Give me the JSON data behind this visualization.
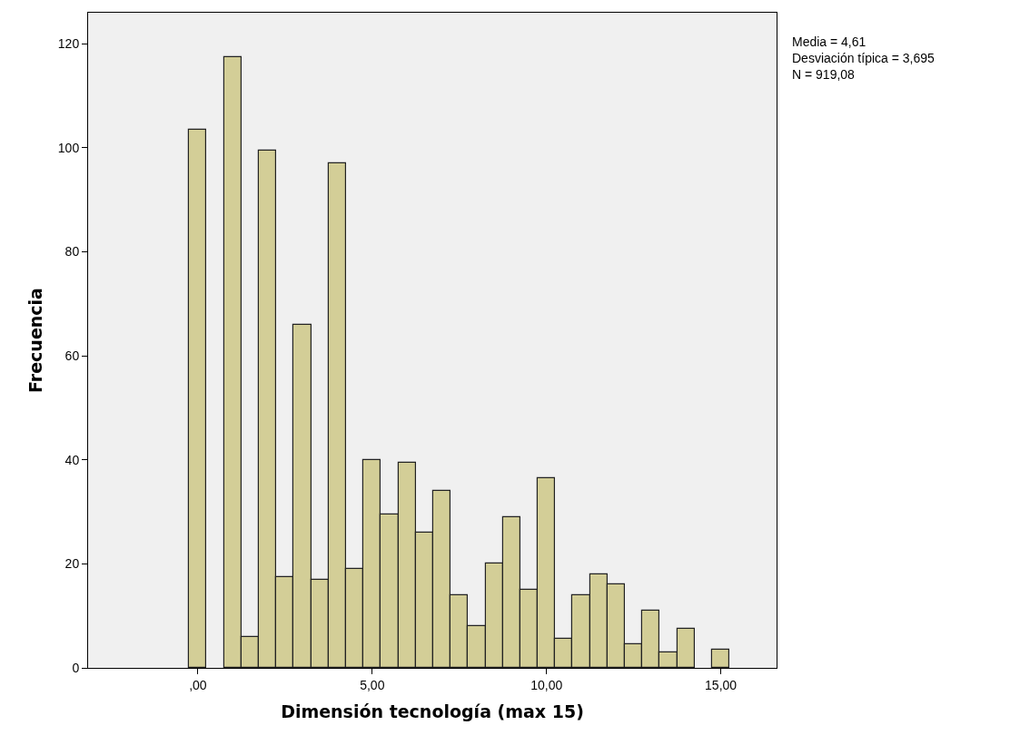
{
  "chart_data": {
    "type": "histogram",
    "xlabel": "Dimensión tecnología (max 15)",
    "ylabel": "Frecuencia",
    "bins": [
      -0.25,
      0.25,
      0.75,
      1.25,
      1.75,
      2.25,
      2.75,
      3.25,
      3.75,
      4.25,
      4.75,
      5.25,
      5.75,
      6.25,
      6.75,
      7.25,
      7.75,
      8.25,
      8.75,
      9.25,
      9.75,
      10.25,
      10.75,
      11.25,
      11.75,
      12.25,
      12.75,
      13.25,
      13.75,
      14.25,
      14.75,
      15.25
    ],
    "values": [
      103.5,
      0,
      117.5,
      6,
      99.5,
      17.5,
      66,
      17,
      97,
      19,
      40,
      29.5,
      39.5,
      26,
      34,
      14,
      8,
      20,
      29,
      15,
      36.5,
      5.5,
      14,
      18,
      16,
      4.5,
      11,
      3,
      7.5,
      0,
      3.5
    ],
    "color": "#d3ce97",
    "xlim": [
      -3.15,
      16.6
    ],
    "xticks": [
      {
        "value": 0,
        "label": ",00"
      },
      {
        "value": 5,
        "label": "5,00"
      },
      {
        "value": 10,
        "label": "10,00"
      },
      {
        "value": 15,
        "label": "15,00"
      }
    ],
    "ylim": [
      0,
      126
    ],
    "yticks": [
      0,
      20,
      40,
      60,
      80,
      100,
      120
    ],
    "grid": false,
    "annotations": [
      "Media = 4,61\nDesviación típica = 3,695\nN = 919,08"
    ]
  }
}
